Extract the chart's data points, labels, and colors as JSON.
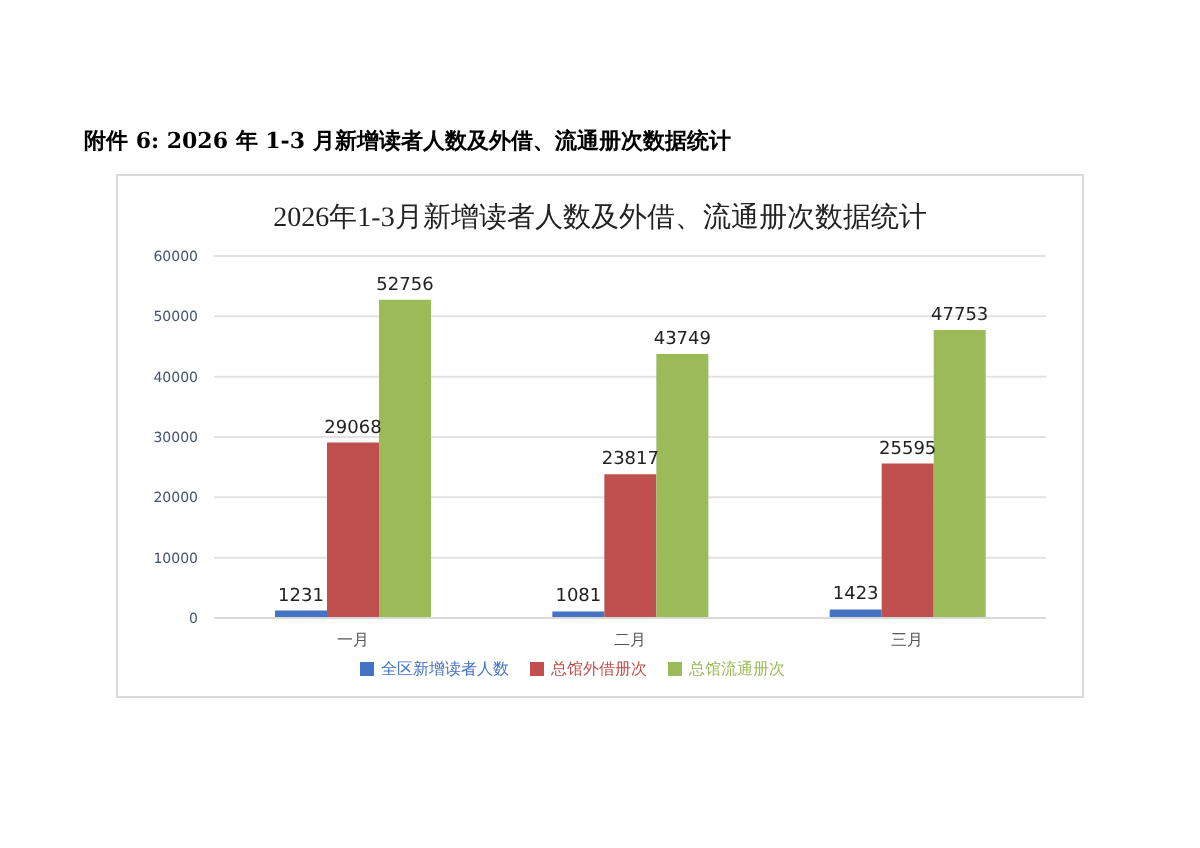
{
  "chart_data": {
    "type": "bar",
    "title": "2026年1-3月新增读者人数及外借、流通册次数据统计",
    "annotations": [
      "附件 6: 2026 年 1-3 月新增读者人数及外借、流通册次数据统计"
    ],
    "categories": [
      "一月",
      "二月",
      "三月"
    ],
    "series": [
      {
        "name": "全区新增读者人数",
        "color": "#4472c4",
        "values": [
          1231,
          1081,
          1423
        ]
      },
      {
        "name": "总馆外借册次",
        "color": "#c0504d",
        "values": [
          29068,
          23817,
          25595
        ]
      },
      {
        "name": "总馆流通册次",
        "color": "#9bbb59",
        "values": [
          52756,
          43749,
          47753
        ]
      }
    ],
    "ylim": [
      0,
      60000
    ],
    "yticks": [
      0,
      10000,
      20000,
      30000,
      40000,
      50000,
      60000
    ],
    "grid": "y",
    "legend": "bottom",
    "data_labels": true
  }
}
